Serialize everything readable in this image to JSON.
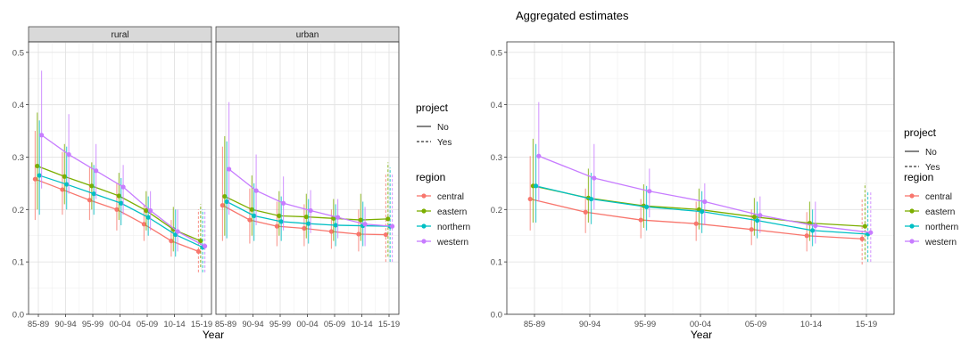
{
  "periods": [
    "85-89",
    "90-94",
    "95-99",
    "00-04",
    "05-09",
    "10-14",
    "15-19"
  ],
  "colors": {
    "central": "#F8766D",
    "eastern": "#7CAE00",
    "northern": "#00BFC4",
    "western": "#C77CFF"
  },
  "left_panel": {
    "strips": [
      "rural",
      "urban"
    ],
    "xlabel": "Year",
    "ylabel": "",
    "yticks": [
      "0.0",
      "0.1",
      "0.2",
      "0.3",
      "0.4",
      "0.5"
    ]
  },
  "right_panel": {
    "title": "Aggregated estimates",
    "xlabel": "Year",
    "yticks": [
      "0.0",
      "0.1",
      "0.2",
      "0.3",
      "0.4",
      "0.5"
    ]
  },
  "legend": {
    "project_title": "project",
    "project_items": [
      "No",
      "Yes"
    ],
    "region_title": "region",
    "region_items": [
      "central",
      "eastern",
      "northern",
      "western"
    ]
  },
  "chart_data": [
    {
      "type": "line",
      "title": "rural",
      "xlabel": "Year",
      "ylim": [
        0,
        0.52
      ],
      "categories": [
        "85-89",
        "90-94",
        "95-99",
        "00-04",
        "05-09",
        "10-14",
        "15-19"
      ],
      "series": [
        {
          "name": "central",
          "values": [
            0.258,
            0.238,
            0.218,
            0.2,
            0.172,
            0.14,
            0.12
          ],
          "lower": [
            0.18,
            0.19,
            0.18,
            0.16,
            0.14,
            0.11,
            0.08
          ],
          "upper": [
            0.35,
            0.31,
            0.28,
            0.25,
            0.21,
            0.18,
            0.2
          ]
        },
        {
          "name": "eastern",
          "values": [
            0.283,
            0.263,
            0.245,
            0.226,
            0.198,
            0.162,
            0.14
          ],
          "lower": [
            0.2,
            0.21,
            0.2,
            0.18,
            0.16,
            0.12,
            0.09
          ],
          "upper": [
            0.385,
            0.325,
            0.29,
            0.27,
            0.235,
            0.205,
            0.21
          ]
        },
        {
          "name": "northern",
          "values": [
            0.265,
            0.248,
            0.23,
            0.212,
            0.185,
            0.152,
            0.128
          ],
          "lower": [
            0.19,
            0.2,
            0.19,
            0.17,
            0.15,
            0.11,
            0.08
          ],
          "upper": [
            0.37,
            0.32,
            0.285,
            0.26,
            0.225,
            0.2,
            0.2
          ]
        },
        {
          "name": "western",
          "values": [
            0.342,
            0.305,
            0.274,
            0.243,
            0.198,
            0.158,
            0.13
          ],
          "lower": [
            0.24,
            0.23,
            0.22,
            0.19,
            0.16,
            0.12,
            0.08
          ],
          "upper": [
            0.465,
            0.382,
            0.325,
            0.285,
            0.235,
            0.2,
            0.2
          ]
        }
      ],
      "project": {
        "No": [
          "85-89",
          "90-94",
          "95-99",
          "00-04",
          "05-09",
          "10-14"
        ],
        "Yes": [
          "15-19"
        ]
      }
    },
    {
      "type": "line",
      "title": "urban",
      "xlabel": "Year",
      "ylim": [
        0,
        0.52
      ],
      "categories": [
        "85-89",
        "90-94",
        "95-99",
        "00-04",
        "05-09",
        "10-14",
        "15-19"
      ],
      "series": [
        {
          "name": "central",
          "values": [
            0.208,
            0.18,
            0.168,
            0.164,
            0.158,
            0.153,
            0.152
          ],
          "lower": [
            0.14,
            0.135,
            0.13,
            0.13,
            0.125,
            0.12,
            0.1
          ],
          "upper": [
            0.32,
            0.24,
            0.215,
            0.21,
            0.2,
            0.2,
            0.27
          ]
        },
        {
          "name": "eastern",
          "values": [
            0.225,
            0.2,
            0.188,
            0.186,
            0.183,
            0.18,
            0.182
          ],
          "lower": [
            0.15,
            0.15,
            0.15,
            0.145,
            0.14,
            0.14,
            0.11
          ],
          "upper": [
            0.34,
            0.265,
            0.235,
            0.23,
            0.22,
            0.23,
            0.29
          ]
        },
        {
          "name": "northern",
          "values": [
            0.215,
            0.188,
            0.177,
            0.173,
            0.17,
            0.169,
            0.168
          ],
          "lower": [
            0.145,
            0.14,
            0.14,
            0.135,
            0.13,
            0.13,
            0.1
          ],
          "upper": [
            0.33,
            0.25,
            0.225,
            0.22,
            0.21,
            0.215,
            0.28
          ]
        },
        {
          "name": "western",
          "values": [
            0.277,
            0.236,
            0.212,
            0.198,
            0.185,
            0.172,
            0.168
          ],
          "lower": [
            0.19,
            0.17,
            0.16,
            0.155,
            0.145,
            0.13,
            0.1
          ],
          "upper": [
            0.405,
            0.305,
            0.263,
            0.237,
            0.22,
            0.205,
            0.27
          ]
        }
      ],
      "project": {
        "No": [
          "85-89",
          "90-94",
          "95-99",
          "00-04",
          "05-09",
          "10-14"
        ],
        "Yes": [
          "15-19"
        ]
      }
    },
    {
      "type": "line",
      "title": "Aggregated estimates",
      "xlabel": "Year",
      "ylim": [
        0,
        0.52
      ],
      "categories": [
        "85-89",
        "90-94",
        "95-99",
        "00-04",
        "05-09",
        "10-14",
        "15-19"
      ],
      "series": [
        {
          "name": "central",
          "values": [
            0.22,
            0.195,
            0.18,
            0.173,
            0.162,
            0.15,
            0.144
          ],
          "lower": [
            0.16,
            0.155,
            0.145,
            0.14,
            0.132,
            0.12,
            0.095
          ],
          "upper": [
            0.302,
            0.24,
            0.22,
            0.215,
            0.2,
            0.195,
            0.22
          ]
        },
        {
          "name": "eastern",
          "values": [
            0.245,
            0.222,
            0.207,
            0.2,
            0.186,
            0.174,
            0.168
          ],
          "lower": [
            0.175,
            0.175,
            0.165,
            0.162,
            0.15,
            0.14,
            0.105
          ],
          "upper": [
            0.335,
            0.278,
            0.248,
            0.24,
            0.222,
            0.215,
            0.25
          ]
        },
        {
          "name": "northern",
          "values": [
            0.245,
            0.22,
            0.205,
            0.196,
            0.179,
            0.16,
            0.153
          ],
          "lower": [
            0.175,
            0.172,
            0.16,
            0.155,
            0.145,
            0.13,
            0.1
          ],
          "upper": [
            0.325,
            0.27,
            0.245,
            0.235,
            0.215,
            0.2,
            0.235
          ]
        },
        {
          "name": "western",
          "values": [
            0.302,
            0.26,
            0.235,
            0.215,
            0.189,
            0.169,
            0.156
          ],
          "lower": [
            0.215,
            0.2,
            0.185,
            0.17,
            0.155,
            0.135,
            0.1
          ],
          "upper": [
            0.405,
            0.325,
            0.278,
            0.25,
            0.225,
            0.215,
            0.235
          ]
        }
      ],
      "project": {
        "No": [
          "85-89",
          "90-94",
          "95-99",
          "00-04",
          "05-09",
          "10-14"
        ],
        "Yes": [
          "15-19"
        ]
      }
    }
  ]
}
